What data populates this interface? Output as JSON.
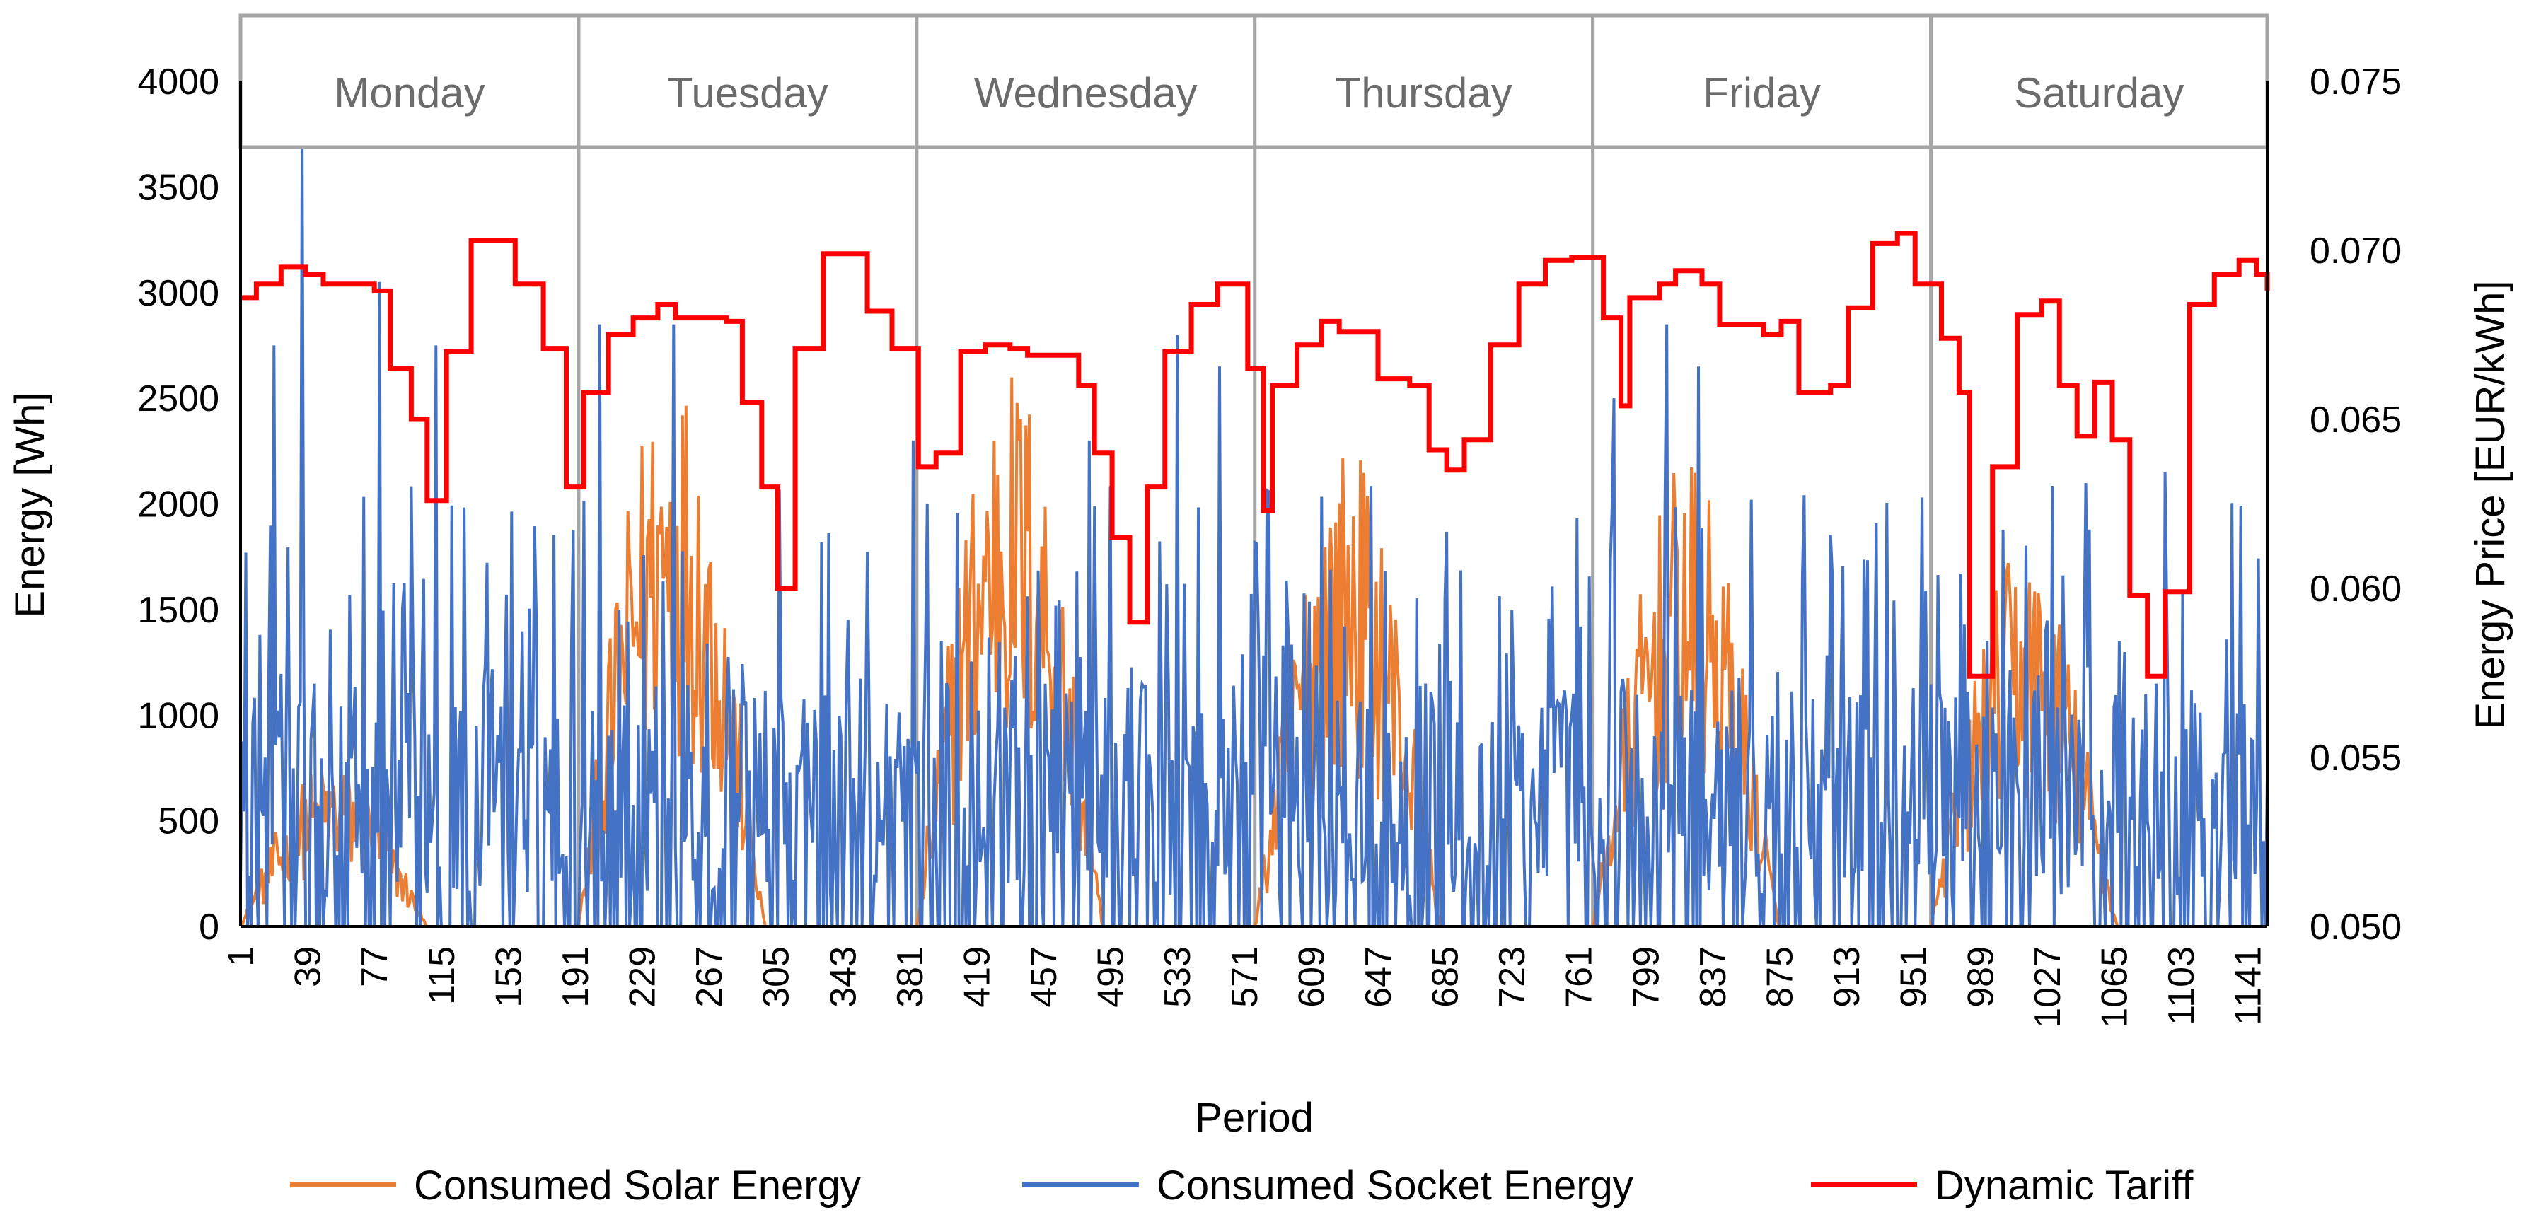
{
  "chart_data": {
    "type": "line",
    "xlabel": "Period",
    "ylabel": "Energy [Wh]",
    "y2label": "Energy Price [EUR/kWh]",
    "xlim": [
      1,
      1152
    ],
    "ylim": [
      0,
      4000
    ],
    "y2lim": [
      0.05,
      0.075
    ],
    "x_ticks": [
      1,
      39,
      77,
      115,
      153,
      191,
      229,
      267,
      305,
      343,
      381,
      419,
      457,
      495,
      533,
      571,
      609,
      647,
      685,
      723,
      761,
      799,
      837,
      875,
      913,
      951,
      989,
      1027,
      1065,
      1103,
      1141
    ],
    "y_ticks": [
      0,
      500,
      1000,
      1500,
      2000,
      2500,
      3000,
      3500,
      4000
    ],
    "y2_ticks": [
      "0.050",
      "0.055",
      "0.060",
      "0.065",
      "0.070",
      "0.075"
    ],
    "days": [
      "Monday",
      "Tuesday",
      "Wednesday",
      "Thursday",
      "Friday",
      "Saturday"
    ],
    "periods_per_day": 192,
    "legend_position": "bottom",
    "series": [
      {
        "name": "Consumed Solar Energy",
        "color": "#ED7D31",
        "axis": "left",
        "note": "Daytime profile per day (peak Wh), with high-frequency variation",
        "daily_peak": [
          800,
          2700,
          2700,
          2300,
          2200,
          1800
        ],
        "active_range_in_day": [
          0.0,
          0.55
        ]
      },
      {
        "name": "Consumed Socket Energy",
        "color": "#4472C4",
        "axis": "left",
        "note": "Highly fluctuating socket consumption; representative spikes listed",
        "max_value": 3700,
        "spikes": [
          [
            20,
            2750
          ],
          [
            36,
            3700
          ],
          [
            80,
            3050
          ],
          [
            112,
            2750
          ],
          [
            205,
            2850
          ],
          [
            247,
            2850
          ],
          [
            383,
            2300
          ],
          [
            483,
            2300
          ],
          [
            533,
            2800
          ],
          [
            557,
            2650
          ],
          [
            781,
            2500
          ],
          [
            811,
            2850
          ],
          [
            829,
            2650
          ],
          [
            1068,
            1350
          ],
          [
            1094,
            2150
          ]
        ]
      },
      {
        "name": "Dynamic Tariff",
        "color": "#FF0000",
        "axis": "right",
        "step_points": [
          [
            1,
            0.0686
          ],
          [
            10,
            0.069
          ],
          [
            24,
            0.0695
          ],
          [
            38,
            0.0693
          ],
          [
            48,
            0.069
          ],
          [
            77,
            0.0688
          ],
          [
            86,
            0.0665
          ],
          [
            98,
            0.065
          ],
          [
            107,
            0.0626
          ],
          [
            118,
            0.067
          ],
          [
            132,
            0.0703
          ],
          [
            157,
            0.069
          ],
          [
            173,
            0.0671
          ],
          [
            186,
            0.063
          ],
          [
            196,
            0.0658
          ],
          [
            210,
            0.0675
          ],
          [
            224,
            0.068
          ],
          [
            238,
            0.0684
          ],
          [
            248,
            0.068
          ],
          [
            277,
            0.0679
          ],
          [
            286,
            0.0655
          ],
          [
            297,
            0.063
          ],
          [
            306,
            0.06
          ],
          [
            316,
            0.0671
          ],
          [
            332,
            0.0699
          ],
          [
            357,
            0.0682
          ],
          [
            371,
            0.0671
          ],
          [
            386,
            0.0636
          ],
          [
            396,
            0.064
          ],
          [
            410,
            0.067
          ],
          [
            424,
            0.0672
          ],
          [
            438,
            0.0671
          ],
          [
            448,
            0.0669
          ],
          [
            477,
            0.066
          ],
          [
            486,
            0.064
          ],
          [
            496,
            0.0615
          ],
          [
            506,
            0.059
          ],
          [
            516,
            0.063
          ],
          [
            526,
            0.067
          ],
          [
            541,
            0.0684
          ],
          [
            556,
            0.069
          ],
          [
            573,
            0.0665
          ],
          [
            582,
            0.0623
          ],
          [
            587,
            0.066
          ],
          [
            601,
            0.0672
          ],
          [
            615,
            0.0679
          ],
          [
            625,
            0.0676
          ],
          [
            647,
            0.0662
          ],
          [
            665,
            0.066
          ],
          [
            676,
            0.0641
          ],
          [
            686,
            0.0635
          ],
          [
            696,
            0.0644
          ],
          [
            711,
            0.0672
          ],
          [
            727,
            0.069
          ],
          [
            742,
            0.0697
          ],
          [
            757,
            0.0698
          ],
          [
            775,
            0.068
          ],
          [
            785,
            0.0654
          ],
          [
            790,
            0.0686
          ],
          [
            807,
            0.069
          ],
          [
            816,
            0.0694
          ],
          [
            831,
            0.069
          ],
          [
            841,
            0.0678
          ],
          [
            866,
            0.0675
          ],
          [
            876,
            0.0679
          ],
          [
            886,
            0.0658
          ],
          [
            904,
            0.066
          ],
          [
            914,
            0.0683
          ],
          [
            928,
            0.0702
          ],
          [
            942,
            0.0705
          ],
          [
            952,
            0.069
          ],
          [
            967,
            0.0674
          ],
          [
            977,
            0.0658
          ],
          [
            983,
            0.0574
          ],
          [
            996,
            0.0636
          ],
          [
            1010,
            0.0681
          ],
          [
            1024,
            0.0685
          ],
          [
            1034,
            0.066
          ],
          [
            1044,
            0.0645
          ],
          [
            1054,
            0.0661
          ],
          [
            1064,
            0.0644
          ],
          [
            1074,
            0.0598
          ],
          [
            1084,
            0.0574
          ],
          [
            1094,
            0.0599
          ],
          [
            1108,
            0.0684
          ],
          [
            1122,
            0.0693
          ],
          [
            1136,
            0.0697
          ],
          [
            1146,
            0.0693
          ],
          [
            1152,
            0.0688
          ]
        ]
      }
    ]
  }
}
